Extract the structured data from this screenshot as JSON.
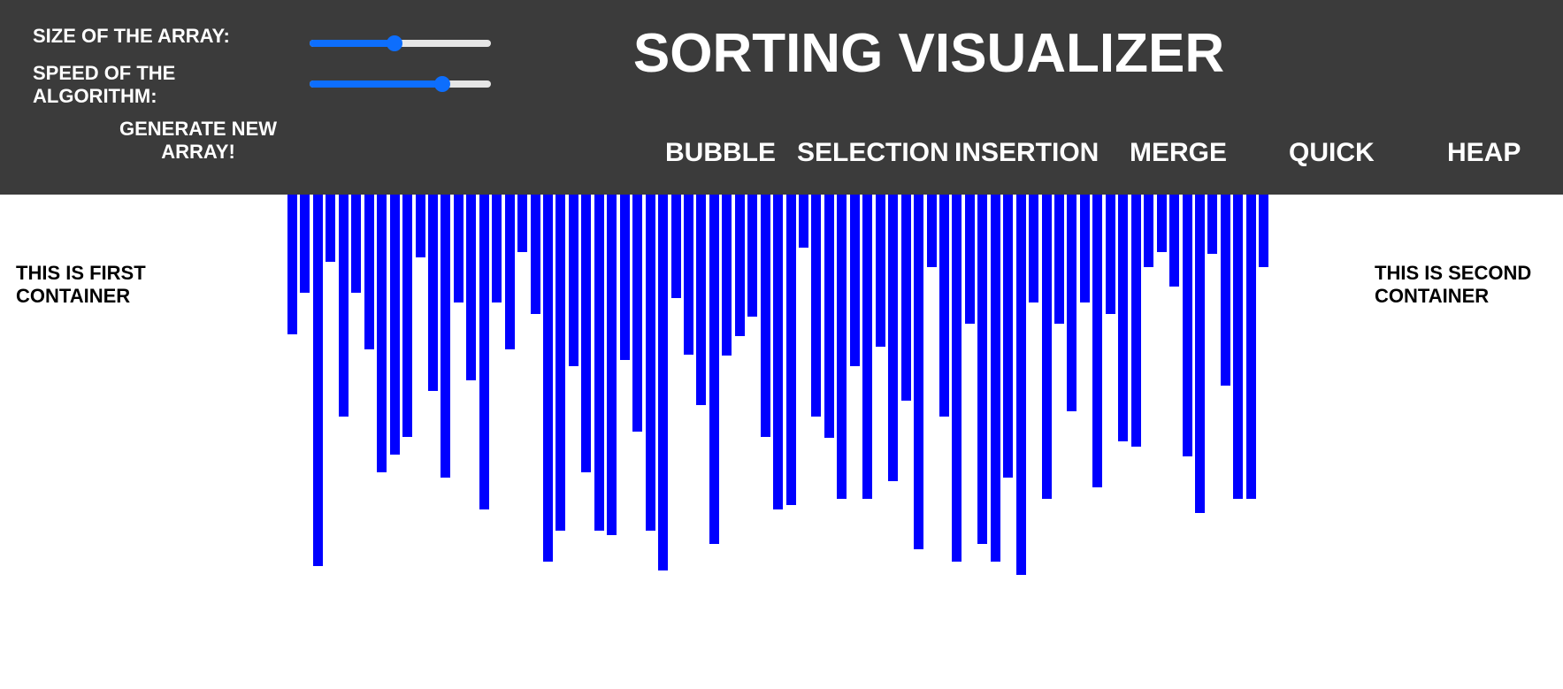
{
  "header": {
    "title": "SORTING VISUALIZER",
    "size_label": "SIZE OF THE ARRAY:",
    "speed_label_line1": "SPEED OF THE",
    "speed_label_line2": "ALGORITHM:",
    "generate_line1": "GENERATE NEW",
    "generate_line2": "ARRAY!",
    "size_slider_value": 0.47,
    "speed_slider_value": 0.73,
    "accent_color": "#0d6efd",
    "background_color": "#3b3b3b"
  },
  "algorithms": [
    "BUBBLE",
    "SELECTION",
    "INSERTION",
    "MERGE",
    "QUICK",
    "HEAP"
  ],
  "containers": {
    "first_line1": "THIS IS FIRST",
    "first_line2": "CONTAINER",
    "second_line1": "THIS IS SECOND",
    "second_line2": "CONTAINER"
  },
  "bar_color": "#0000ff",
  "array": [
    158,
    111,
    420,
    76,
    251,
    111,
    175,
    314,
    294,
    274,
    71,
    222,
    320,
    122,
    210,
    356,
    122,
    175,
    65,
    135,
    415,
    380,
    194,
    314,
    380,
    385,
    187,
    268,
    380,
    425,
    117,
    181,
    238,
    395,
    182,
    160,
    138,
    274,
    356,
    351,
    60,
    251,
    275,
    344,
    194,
    344,
    172,
    324,
    233,
    401,
    82,
    251,
    415,
    146,
    395,
    415,
    320,
    430,
    122,
    344,
    146,
    245,
    122,
    331,
    135,
    279,
    285,
    82,
    65,
    104,
    296,
    360,
    67,
    216,
    344,
    344,
    82
  ]
}
